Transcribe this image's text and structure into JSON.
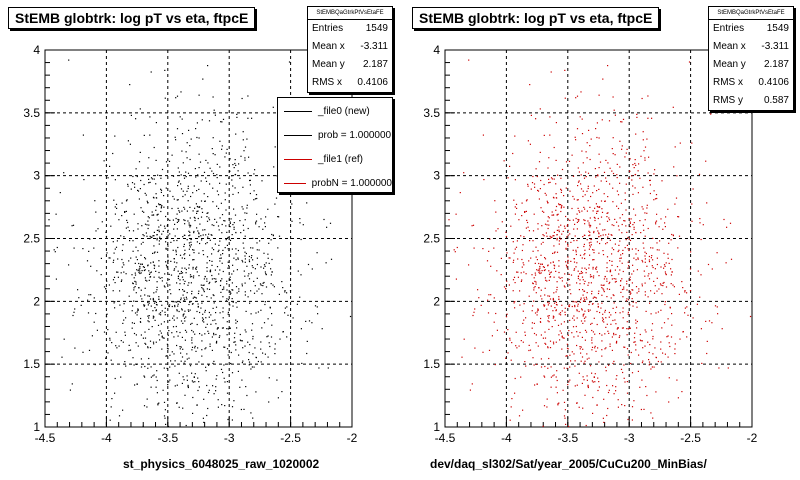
{
  "chart_data": [
    {
      "type": "scatter",
      "title": "StEMB globtrk: log pT vs eta, ftpcE",
      "xlabel": "st_physics_6048025_raw_1020002",
      "xlim": [
        -4.5,
        -2
      ],
      "ylim": [
        1,
        4
      ],
      "xticks": [
        "-4.5",
        "-4",
        "-3.5",
        "-3",
        "-2.5",
        "-2"
      ],
      "yticks": [
        "1",
        "1.5",
        "2",
        "2.5",
        "3",
        "3.5",
        "4"
      ],
      "grid": true,
      "marker_color": "#000000",
      "stats": {
        "name": "StEMBQaGtrkPtVsEtaFE",
        "rows": [
          {
            "label": "Entries",
            "value": "1549"
          },
          {
            "label": "Mean x",
            "value": "-3.311"
          },
          {
            "label": "Mean y",
            "value": "2.187"
          },
          {
            "label": "RMS x",
            "value": "0.4106"
          }
        ]
      },
      "legend": {
        "placement": "top-right",
        "entries": [
          {
            "label": "_file0 (new)",
            "color": "#000000"
          },
          {
            "label": "prob = 1.000000",
            "color": "#000000"
          },
          {
            "label": "_file1 (ref)",
            "color": "#cc0000"
          },
          {
            "label": "probN = 1.000000",
            "color": "#cc0000"
          }
        ]
      },
      "distribution": {
        "entries": 1549,
        "mean_x": -3.311,
        "mean_y": 2.187,
        "rms_x": 0.4106,
        "rms_y": 0.587
      }
    },
    {
      "type": "scatter",
      "title": "StEMB globtrk: log pT vs eta, ftpcE",
      "xlabel": "dev/daq_sl302/Sat/year_2005/CuCu200_MinBias/",
      "xlim": [
        -4.5,
        -2
      ],
      "ylim": [
        1,
        4
      ],
      "xticks": [
        "-4.5",
        "-4",
        "-3.5",
        "-3",
        "-2.5",
        "-2"
      ],
      "yticks": [
        "1",
        "1.5",
        "2",
        "2.5",
        "3",
        "3.5",
        "4"
      ],
      "grid": true,
      "marker_color": "#cc0000",
      "stats": {
        "name": "StEMBQaGtrkPtVsEtaFE",
        "rows": [
          {
            "label": "Entries",
            "value": "1549"
          },
          {
            "label": "Mean x",
            "value": "-3.311"
          },
          {
            "label": "Mean y",
            "value": "2.187"
          },
          {
            "label": "RMS x",
            "value": "0.4106"
          },
          {
            "label": "RMS y",
            "value": "0.587"
          }
        ]
      },
      "distribution": {
        "entries": 1549,
        "mean_x": -3.311,
        "mean_y": 2.187,
        "rms_x": 0.4106,
        "rms_y": 0.587
      }
    }
  ]
}
